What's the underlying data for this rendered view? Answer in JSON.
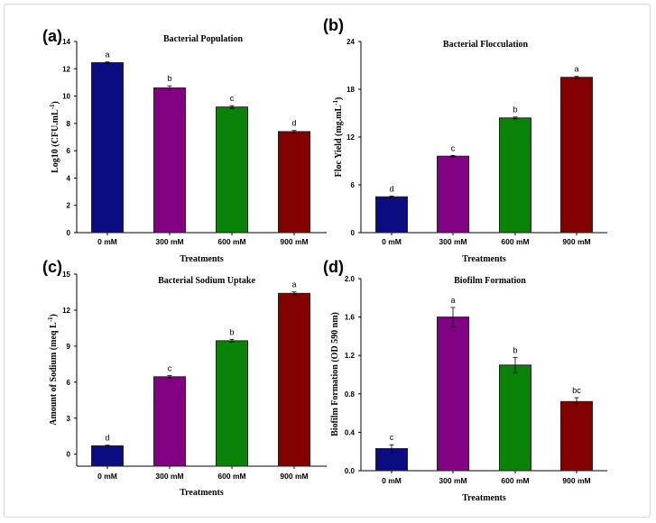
{
  "chart_data": [
    {
      "type": "bar",
      "panel_label": "(a)",
      "title": "Bacterial Population",
      "xlabel": "Treatments",
      "ylabel_parts": [
        "Log10 (CFU.mL",
        "-1",
        ")"
      ],
      "categories": [
        "0 mM",
        "300 mM",
        "600 mM",
        "900 mM"
      ],
      "values": [
        12.45,
        10.6,
        9.2,
        7.4
      ],
      "errors": [
        0.05,
        0.15,
        0.1,
        0.08
      ],
      "letters": [
        "a",
        "b",
        "c",
        "d"
      ],
      "ylim": [
        0,
        14
      ],
      "yticks": [
        0,
        2,
        4,
        6,
        8,
        10,
        12,
        14
      ]
    },
    {
      "type": "bar",
      "panel_label": "(b)",
      "title": "Bacterial Flocculation",
      "xlabel": "Treatments",
      "ylabel_parts": [
        "Floc Yield (mg.mL",
        "-1",
        ")"
      ],
      "categories": [
        "0 mM",
        "300 mM",
        "600 mM",
        "900 mM"
      ],
      "values": [
        4.5,
        9.6,
        14.4,
        19.5
      ],
      "errors": [
        0.1,
        0.1,
        0.12,
        0.12
      ],
      "letters": [
        "d",
        "c",
        "b",
        "a"
      ],
      "ylim": [
        0,
        24
      ],
      "yticks": [
        0,
        6,
        12,
        18,
        24
      ]
    },
    {
      "type": "bar",
      "panel_label": "(c)",
      "title": "Bacterial Sodium Uptake",
      "xlabel": "Treatments",
      "ylabel_parts": [
        "Amount of Sodium (meq L",
        "-1",
        ")"
      ],
      "categories": [
        "0 mM",
        "300 mM",
        "600 mM",
        "900 mM"
      ],
      "values": [
        0.7,
        6.45,
        9.45,
        13.4
      ],
      "errors": [
        0.05,
        0.1,
        0.12,
        0.12
      ],
      "letters": [
        "d",
        "c",
        "b",
        "a"
      ],
      "ylim": [
        -1,
        15
      ],
      "yticks": [
        0,
        3,
        6,
        9,
        12,
        15
      ]
    },
    {
      "type": "bar",
      "panel_label": "(d)",
      "title": "Biofilm Formation",
      "xlabel": "Treatments",
      "ylabel_parts": [
        "Biofilm Formation (OD 590 nm)",
        "",
        ""
      ],
      "categories": [
        "0 mM",
        "300 mM",
        "600 mM",
        "900 mM"
      ],
      "values": [
        0.23,
        1.6,
        1.1,
        0.72
      ],
      "errors": [
        0.04,
        0.1,
        0.08,
        0.04
      ],
      "letters": [
        "c",
        "a",
        "b",
        "bc"
      ],
      "ylim": [
        0,
        2.0
      ],
      "yticks": [
        "0.0",
        "0.4",
        "0.8",
        "1.2",
        "1.6",
        "2.0"
      ]
    }
  ],
  "colors": [
    "#0b0b82",
    "#820082",
    "#0a820a",
    "#820000"
  ]
}
